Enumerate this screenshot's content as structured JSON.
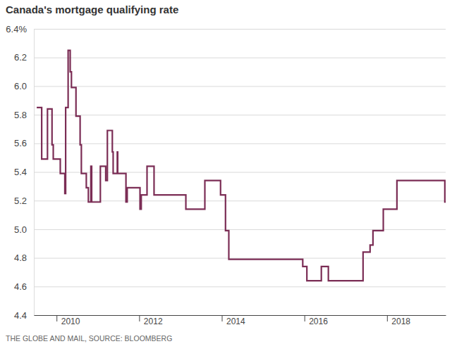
{
  "chart_data": {
    "type": "line",
    "title": "Canada's mortgage qualifying rate",
    "source": "THE GLOBE AND MAIL, SOURCE: BLOOMBERG",
    "x": [
      2009.52,
      2009.64,
      2009.78,
      2009.89,
      2009.92,
      2010.09,
      2010.2,
      2010.22,
      2010.28,
      2010.33,
      2010.36,
      2010.47,
      2010.57,
      2010.6,
      2010.72,
      2010.77,
      2010.83,
      2010.85,
      2011.06,
      2011.19,
      2011.23,
      2011.35,
      2011.37,
      2011.47,
      2011.48,
      2011.68,
      2011.71,
      2012.02,
      2012.05,
      2012.19,
      2012.36,
      2013.13,
      2013.59,
      2013.97,
      2014.09,
      2014.17,
      2015.96,
      2016.06,
      2016.41,
      2016.58,
      2017.42,
      2017.59,
      2017.66,
      2017.91,
      2018.24,
      2019.4,
      2019.42
    ],
    "values": [
      5.85,
      5.49,
      5.84,
      5.59,
      5.49,
      5.39,
      5.25,
      5.85,
      6.25,
      6.1,
      5.99,
      5.79,
      5.59,
      5.39,
      5.29,
      5.19,
      5.44,
      5.19,
      5.44,
      5.34,
      5.69,
      5.54,
      5.39,
      5.54,
      5.39,
      5.19,
      5.29,
      5.14,
      5.24,
      5.44,
      5.24,
      5.14,
      5.34,
      5.24,
      4.99,
      4.79,
      4.74,
      4.64,
      4.74,
      4.64,
      4.84,
      4.89,
      4.99,
      5.14,
      5.34,
      5.19,
      5.19
    ],
    "color": "#7b2d55",
    "line_style": "step",
    "grid": true,
    "xlim": [
      2009.45,
      2019.42
    ],
    "xticks": [
      2010,
      2012,
      2014,
      2016,
      2018
    ],
    "ylim": [
      4.4,
      6.4
    ],
    "yticks": [
      4.4,
      4.6,
      4.8,
      {
        "value": 5,
        "label": "5.0"
      },
      5.2,
      5.4,
      5.6,
      5.8,
      {
        "value": 6,
        "label": "6.0"
      },
      6.2,
      {
        "value": 6.4,
        "label": "6.4%"
      }
    ]
  }
}
